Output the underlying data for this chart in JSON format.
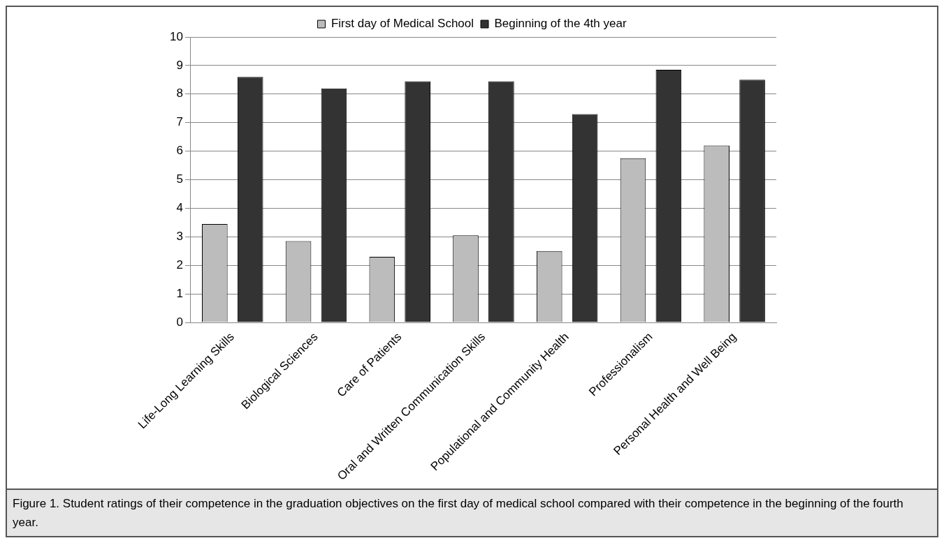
{
  "chart_data": {
    "type": "bar",
    "categories": [
      "Life-Long Learning Skills",
      "Biological Sciences",
      "Care of Patients",
      "Oral and Written Communication Skills",
      "Populational and Community Health",
      "Professionalism",
      "Personal Health and Well Being"
    ],
    "series": [
      {
        "name": "First day of Medical School",
        "color": "#bcbcbc",
        "values": [
          3.45,
          2.85,
          2.3,
          3.05,
          2.5,
          5.75,
          6.2
        ]
      },
      {
        "name": "Beginning of the 4th year",
        "color": "#333333",
        "values": [
          8.6,
          8.2,
          8.45,
          8.45,
          7.3,
          8.85,
          8.5
        ]
      }
    ],
    "ylim": [
      0,
      10
    ],
    "yticks": [
      0,
      1,
      2,
      3,
      4,
      5,
      6,
      7,
      8,
      9,
      10
    ],
    "grid": "y",
    "legend": "top",
    "annotations": [
      "Figure 1. Student ratings of their competence in the graduation objectives on the first day of medical school compared with their competence in the beginning of the fourth year."
    ]
  }
}
